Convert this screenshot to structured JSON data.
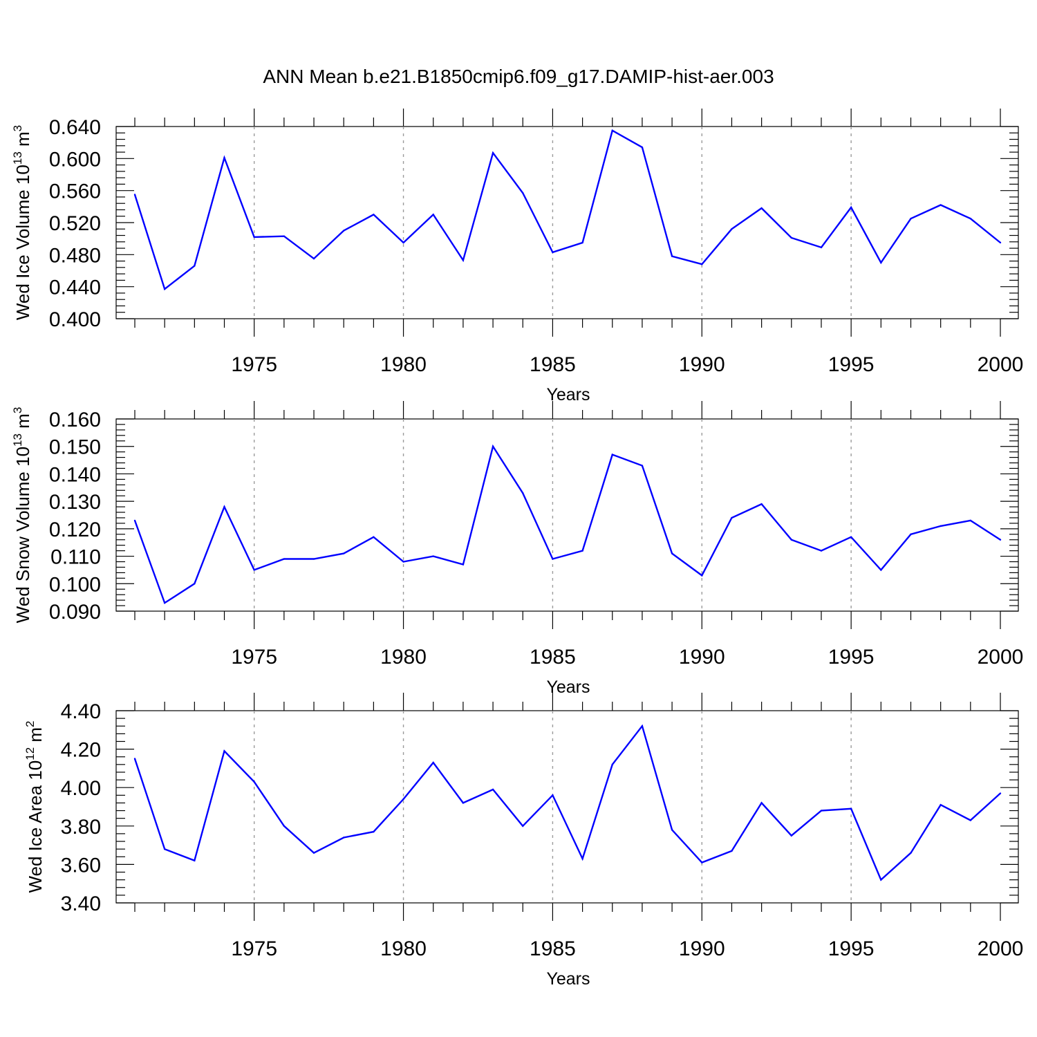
{
  "figure": {
    "title": "ANN Mean b.e21.B1850cmip6.f09_g17.DAMIP-hist-aer.003",
    "series_color": "#0000ff"
  },
  "chart_data": [
    {
      "type": "line",
      "title": "",
      "xlabel": "Years",
      "ylabel": {
        "text": "Wed Ice Volume 10",
        "exp": "13",
        "unit": "m",
        "unit_exp": "3"
      },
      "xlim": [
        1971,
        2000
      ],
      "ylim": [
        0.4,
        0.64
      ],
      "x_ticks": [
        1975,
        1980,
        1985,
        1990,
        1995,
        2000
      ],
      "y_ticks": [
        "0.400",
        "0.440",
        "0.480",
        "0.520",
        "0.560",
        "0.600",
        "0.640"
      ],
      "grid": "vertical dashed at major x ticks",
      "series": [
        {
          "x": [
            1971,
            1972,
            1973,
            1974,
            1975,
            1976,
            1977,
            1978,
            1979,
            1980,
            1981,
            1982,
            1983,
            1984,
            1985,
            1986,
            1987,
            1988,
            1989,
            1990,
            1991,
            1992,
            1993,
            1994,
            1995,
            1996,
            1997,
            1998,
            1999,
            2000
          ],
          "values": [
            0.555,
            0.437,
            0.466,
            0.601,
            0.502,
            0.503,
            0.475,
            0.51,
            0.53,
            0.495,
            0.53,
            0.473,
            0.607,
            0.557,
            0.483,
            0.495,
            0.635,
            0.614,
            0.478,
            0.468,
            0.512,
            0.538,
            0.501,
            0.489,
            0.539,
            0.47,
            0.525,
            0.542,
            0.525,
            0.495
          ]
        }
      ]
    },
    {
      "type": "line",
      "title": "",
      "xlabel": "Years",
      "ylabel": {
        "text": "Wed Snow Volume 10",
        "exp": "13",
        "unit": "m",
        "unit_exp": "3"
      },
      "xlim": [
        1971,
        2000
      ],
      "ylim": [
        0.09,
        0.16
      ],
      "x_ticks": [
        1975,
        1980,
        1985,
        1990,
        1995,
        2000
      ],
      "y_ticks": [
        "0.090",
        "0.100",
        "0.110",
        "0.120",
        "0.130",
        "0.140",
        "0.150",
        "0.160"
      ],
      "grid": "vertical dashed at major x ticks",
      "series": [
        {
          "x": [
            1971,
            1972,
            1973,
            1974,
            1975,
            1976,
            1977,
            1978,
            1979,
            1980,
            1981,
            1982,
            1983,
            1984,
            1985,
            1986,
            1987,
            1988,
            1989,
            1990,
            1991,
            1992,
            1993,
            1994,
            1995,
            1996,
            1997,
            1998,
            1999,
            2000
          ],
          "values": [
            0.123,
            0.093,
            0.1,
            0.128,
            0.105,
            0.109,
            0.109,
            0.111,
            0.117,
            0.108,
            0.11,
            0.107,
            0.15,
            0.133,
            0.109,
            0.112,
            0.147,
            0.143,
            0.111,
            0.103,
            0.124,
            0.129,
            0.116,
            0.112,
            0.117,
            0.105,
            0.118,
            0.121,
            0.123,
            0.116
          ]
        }
      ]
    },
    {
      "type": "line",
      "title": "",
      "xlabel": "Years",
      "ylabel": {
        "text": "Wed Ice Area 10",
        "exp": "12",
        "unit": "m",
        "unit_exp": "2"
      },
      "xlim": [
        1971,
        2000
      ],
      "ylim": [
        3.4,
        4.4
      ],
      "x_ticks": [
        1975,
        1980,
        1985,
        1990,
        1995,
        2000
      ],
      "y_ticks": [
        "3.40",
        "3.60",
        "3.80",
        "4.00",
        "4.20",
        "4.40"
      ],
      "grid": "vertical dashed at major x ticks",
      "series": [
        {
          "x": [
            1971,
            1972,
            1973,
            1974,
            1975,
            1976,
            1977,
            1978,
            1979,
            1980,
            1981,
            1982,
            1983,
            1984,
            1985,
            1986,
            1987,
            1988,
            1989,
            1990,
            1991,
            1992,
            1993,
            1994,
            1995,
            1996,
            1997,
            1998,
            1999,
            2000
          ],
          "values": [
            4.15,
            3.68,
            3.62,
            4.19,
            4.03,
            3.8,
            3.66,
            3.74,
            3.77,
            3.94,
            4.13,
            3.92,
            3.99,
            3.8,
            3.96,
            3.63,
            4.12,
            4.32,
            3.78,
            3.61,
            3.67,
            3.92,
            3.75,
            3.88,
            3.89,
            3.52,
            3.66,
            3.91,
            3.83,
            3.97
          ]
        }
      ]
    }
  ]
}
